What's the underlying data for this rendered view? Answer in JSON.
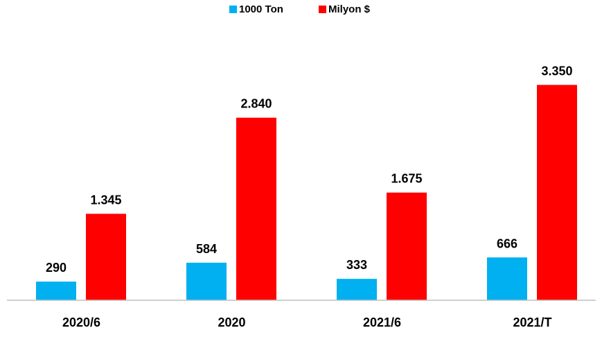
{
  "chart_data": {
    "type": "bar",
    "title": "",
    "xlabel": "",
    "ylabel": "",
    "categories": [
      "2020/6",
      "2020",
      "2021/6",
      "2021/T"
    ],
    "series": [
      {
        "name": "1000 Ton",
        "color": "#00B0F0",
        "values": [
          290,
          584,
          333,
          666
        ],
        "labels": [
          "290",
          "584",
          "333",
          "666"
        ]
      },
      {
        "name": "Milyon $",
        "color": "#FF0000",
        "values": [
          1345,
          2840,
          1675,
          3350
        ],
        "labels": [
          "1.345",
          "2.840",
          "1.675",
          "3.350"
        ]
      }
    ],
    "ylim": [
      0,
      3900
    ],
    "grid": false,
    "legend_position": "top-center"
  }
}
